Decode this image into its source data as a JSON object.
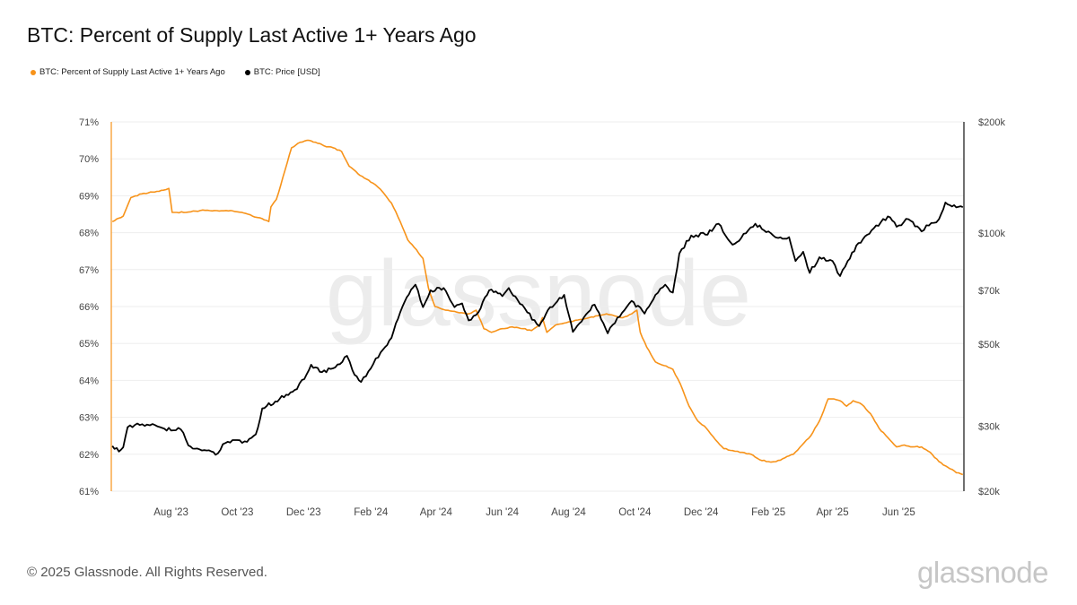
{
  "page": {
    "title": "BTC: Percent of Supply Last Active 1+ Years Ago",
    "footer": "© 2025 Glassnode. All Rights Reserved.",
    "brand": "glassnode",
    "watermark": "glassnode"
  },
  "chart_data": {
    "type": "line",
    "title": "BTC: Percent of Supply Last Active 1+ Years Ago",
    "legend_position": "top-left",
    "grid": true,
    "x_labels": [
      "Aug '23",
      "Oct '23",
      "Dec '23",
      "Feb '24",
      "Apr '24",
      "Jun '24",
      "Aug '24",
      "Oct '24",
      "Dec '24",
      "Feb '25",
      "Apr '25",
      "Jun '25"
    ],
    "x_label_dates": [
      "2023-08-01",
      "2023-10-01",
      "2023-12-01",
      "2024-02-01",
      "2024-04-01",
      "2024-06-01",
      "2024-08-01",
      "2024-10-01",
      "2024-12-01",
      "2025-02-01",
      "2025-04-01",
      "2025-06-01"
    ],
    "xlim": [
      "2023-06-07",
      "2025-07-31"
    ],
    "y_left": {
      "ticks": [
        "61%",
        "62%",
        "63%",
        "64%",
        "65%",
        "66%",
        "67%",
        "68%",
        "69%",
        "70%",
        "71%"
      ],
      "tick_values": [
        61,
        62,
        63,
        64,
        65,
        66,
        67,
        68,
        69,
        70,
        71
      ],
      "ylim": [
        61,
        71
      ]
    },
    "y_right": {
      "ticks": [
        "$20k",
        "$30k",
        "$50k",
        "$70k",
        "$100k",
        "$200k"
      ],
      "tick_values": [
        20000,
        30000,
        50000,
        70000,
        100000,
        200000
      ],
      "scale": "log",
      "ylim": [
        20000,
        200000
      ]
    },
    "series": [
      {
        "name": "BTC: Percent of Supply Last Active 1+ Years Ago",
        "color": "#f7931a",
        "axis": "left",
        "points": [
          [
            "2023-06-08",
            68.3
          ],
          [
            "2023-06-18",
            68.45
          ],
          [
            "2023-06-25",
            68.95
          ],
          [
            "2023-07-05",
            69.05
          ],
          [
            "2023-07-15",
            69.1
          ],
          [
            "2023-07-25",
            69.15
          ],
          [
            "2023-07-30",
            69.2
          ],
          [
            "2023-08-02",
            68.55
          ],
          [
            "2023-08-15",
            68.55
          ],
          [
            "2023-08-28",
            68.6
          ],
          [
            "2023-09-10",
            68.6
          ],
          [
            "2023-09-25",
            68.6
          ],
          [
            "2023-10-05",
            68.55
          ],
          [
            "2023-10-15",
            68.45
          ],
          [
            "2023-10-22",
            68.4
          ],
          [
            "2023-10-30",
            68.3
          ],
          [
            "2023-11-01",
            68.7
          ],
          [
            "2023-11-06",
            68.9
          ],
          [
            "2023-11-12",
            69.5
          ],
          [
            "2023-11-20",
            70.3
          ],
          [
            "2023-11-28",
            70.45
          ],
          [
            "2023-12-04",
            70.5
          ],
          [
            "2023-12-12",
            70.45
          ],
          [
            "2023-12-20",
            70.35
          ],
          [
            "2023-12-28",
            70.3
          ],
          [
            "2024-01-05",
            70.2
          ],
          [
            "2024-01-12",
            69.8
          ],
          [
            "2024-01-20",
            69.6
          ],
          [
            "2024-01-28",
            69.45
          ],
          [
            "2024-02-05",
            69.3
          ],
          [
            "2024-02-12",
            69.1
          ],
          [
            "2024-02-20",
            68.8
          ],
          [
            "2024-02-28",
            68.3
          ],
          [
            "2024-03-06",
            67.8
          ],
          [
            "2024-03-12",
            67.6
          ],
          [
            "2024-03-20",
            67.3
          ],
          [
            "2024-03-25",
            66.5
          ],
          [
            "2024-03-31",
            66.0
          ],
          [
            "2024-04-10",
            65.9
          ],
          [
            "2024-04-20",
            65.85
          ],
          [
            "2024-05-01",
            65.8
          ],
          [
            "2024-05-08",
            65.9
          ],
          [
            "2024-05-15",
            65.4
          ],
          [
            "2024-05-22",
            65.3
          ],
          [
            "2024-06-01",
            65.4
          ],
          [
            "2024-06-10",
            65.45
          ],
          [
            "2024-06-20",
            65.4
          ],
          [
            "2024-06-28",
            65.35
          ],
          [
            "2024-07-05",
            65.5
          ],
          [
            "2024-07-08",
            65.7
          ],
          [
            "2024-07-12",
            65.3
          ],
          [
            "2024-07-20",
            65.5
          ],
          [
            "2024-07-28",
            65.55
          ],
          [
            "2024-08-05",
            65.6
          ],
          [
            "2024-08-12",
            65.65
          ],
          [
            "2024-08-20",
            65.7
          ],
          [
            "2024-08-28",
            65.75
          ],
          [
            "2024-09-05",
            65.8
          ],
          [
            "2024-09-12",
            65.75
          ],
          [
            "2024-09-20",
            65.7
          ],
          [
            "2024-09-28",
            65.8
          ],
          [
            "2024-10-03",
            65.9
          ],
          [
            "2024-10-06",
            65.3
          ],
          [
            "2024-10-12",
            64.9
          ],
          [
            "2024-10-20",
            64.5
          ],
          [
            "2024-10-28",
            64.4
          ],
          [
            "2024-11-05",
            64.3
          ],
          [
            "2024-11-12",
            63.9
          ],
          [
            "2024-11-20",
            63.3
          ],
          [
            "2024-11-28",
            62.9
          ],
          [
            "2024-12-06",
            62.7
          ],
          [
            "2024-12-14",
            62.4
          ],
          [
            "2024-12-22",
            62.15
          ],
          [
            "2024-12-30",
            62.1
          ],
          [
            "2025-01-08",
            62.05
          ],
          [
            "2025-01-16",
            62.0
          ],
          [
            "2025-01-24",
            61.85
          ],
          [
            "2025-02-01",
            61.8
          ],
          [
            "2025-02-08",
            61.8
          ],
          [
            "2025-02-16",
            61.9
          ],
          [
            "2025-02-24",
            62.0
          ],
          [
            "2025-03-04",
            62.25
          ],
          [
            "2025-03-12",
            62.5
          ],
          [
            "2025-03-20",
            62.9
          ],
          [
            "2025-03-28",
            63.5
          ],
          [
            "2025-04-02",
            63.5
          ],
          [
            "2025-04-08",
            63.45
          ],
          [
            "2025-04-14",
            63.3
          ],
          [
            "2025-04-20",
            63.45
          ],
          [
            "2025-04-28",
            63.35
          ],
          [
            "2025-05-06",
            63.1
          ],
          [
            "2025-05-14",
            62.7
          ],
          [
            "2025-05-22",
            62.45
          ],
          [
            "2025-05-30",
            62.2
          ],
          [
            "2025-06-06",
            62.25
          ],
          [
            "2025-06-14",
            62.2
          ],
          [
            "2025-06-22",
            62.2
          ],
          [
            "2025-06-30",
            62.05
          ],
          [
            "2025-07-08",
            61.8
          ],
          [
            "2025-07-16",
            61.65
          ],
          [
            "2025-07-24",
            61.5
          ],
          [
            "2025-07-30",
            61.45
          ]
        ]
      },
      {
        "name": "BTC: Price [USD]",
        "color": "#000000",
        "axis": "right",
        "points": [
          [
            "2023-06-08",
            26500
          ],
          [
            "2023-06-14",
            25600
          ],
          [
            "2023-06-18",
            26300
          ],
          [
            "2023-06-22",
            29800
          ],
          [
            "2023-07-01",
            30500
          ],
          [
            "2023-07-10",
            30300
          ],
          [
            "2023-07-15",
            30400
          ],
          [
            "2023-07-22",
            29800
          ],
          [
            "2023-08-01",
            29200
          ],
          [
            "2023-08-10",
            29400
          ],
          [
            "2023-08-17",
            26600
          ],
          [
            "2023-08-25",
            26100
          ],
          [
            "2023-09-05",
            25800
          ],
          [
            "2023-09-11",
            25100
          ],
          [
            "2023-09-20",
            27000
          ],
          [
            "2023-10-01",
            27500
          ],
          [
            "2023-10-10",
            27200
          ],
          [
            "2023-10-18",
            28500
          ],
          [
            "2023-10-24",
            33500
          ],
          [
            "2023-11-05",
            35000
          ],
          [
            "2023-11-15",
            36500
          ],
          [
            "2023-11-25",
            37800
          ],
          [
            "2023-12-04",
            41500
          ],
          [
            "2023-12-08",
            44000
          ],
          [
            "2023-12-18",
            42000
          ],
          [
            "2023-12-28",
            43000
          ],
          [
            "2024-01-10",
            46500
          ],
          [
            "2024-01-15",
            42500
          ],
          [
            "2024-01-23",
            39500
          ],
          [
            "2024-02-01",
            43000
          ],
          [
            "2024-02-10",
            47500
          ],
          [
            "2024-02-20",
            52000
          ],
          [
            "2024-02-28",
            61000
          ],
          [
            "2024-03-05",
            67000
          ],
          [
            "2024-03-13",
            72500
          ],
          [
            "2024-03-20",
            63000
          ],
          [
            "2024-03-27",
            70000
          ],
          [
            "2024-04-08",
            71000
          ],
          [
            "2024-04-18",
            63000
          ],
          [
            "2024-04-25",
            64500
          ],
          [
            "2024-05-01",
            58000
          ],
          [
            "2024-05-10",
            61000
          ],
          [
            "2024-05-20",
            70000
          ],
          [
            "2024-06-01",
            67500
          ],
          [
            "2024-06-07",
            71000
          ],
          [
            "2024-06-15",
            66000
          ],
          [
            "2024-06-24",
            61000
          ],
          [
            "2024-07-05",
            56000
          ],
          [
            "2024-07-15",
            63000
          ],
          [
            "2024-07-28",
            68000
          ],
          [
            "2024-08-05",
            54000
          ],
          [
            "2024-08-15",
            59000
          ],
          [
            "2024-08-25",
            64000
          ],
          [
            "2024-09-06",
            53500
          ],
          [
            "2024-09-15",
            59000
          ],
          [
            "2024-09-28",
            65500
          ],
          [
            "2024-10-10",
            60500
          ],
          [
            "2024-10-20",
            68000
          ],
          [
            "2024-10-29",
            72500
          ],
          [
            "2024-11-05",
            69000
          ],
          [
            "2024-11-11",
            88000
          ],
          [
            "2024-11-22",
            98500
          ],
          [
            "2024-12-05",
            99000
          ],
          [
            "2024-12-17",
            106000
          ],
          [
            "2024-12-30",
            93000
          ],
          [
            "2025-01-07",
            97000
          ],
          [
            "2025-01-20",
            106000
          ],
          [
            "2025-02-01",
            101000
          ],
          [
            "2025-02-10",
            97000
          ],
          [
            "2025-02-20",
            97500
          ],
          [
            "2025-02-26",
            84000
          ],
          [
            "2025-03-05",
            89000
          ],
          [
            "2025-03-11",
            78000
          ],
          [
            "2025-03-20",
            86000
          ],
          [
            "2025-04-01",
            84000
          ],
          [
            "2025-04-08",
            76500
          ],
          [
            "2025-04-15",
            84000
          ],
          [
            "2025-04-25",
            94000
          ],
          [
            "2025-05-09",
            103000
          ],
          [
            "2025-05-22",
            111000
          ],
          [
            "2025-05-30",
            104000
          ],
          [
            "2025-06-10",
            109000
          ],
          [
            "2025-06-22",
            101000
          ],
          [
            "2025-07-01",
            106500
          ],
          [
            "2025-07-08",
            109000
          ],
          [
            "2025-07-14",
            121000
          ],
          [
            "2025-07-20",
            118000
          ],
          [
            "2025-07-30",
            117500
          ]
        ]
      }
    ]
  }
}
